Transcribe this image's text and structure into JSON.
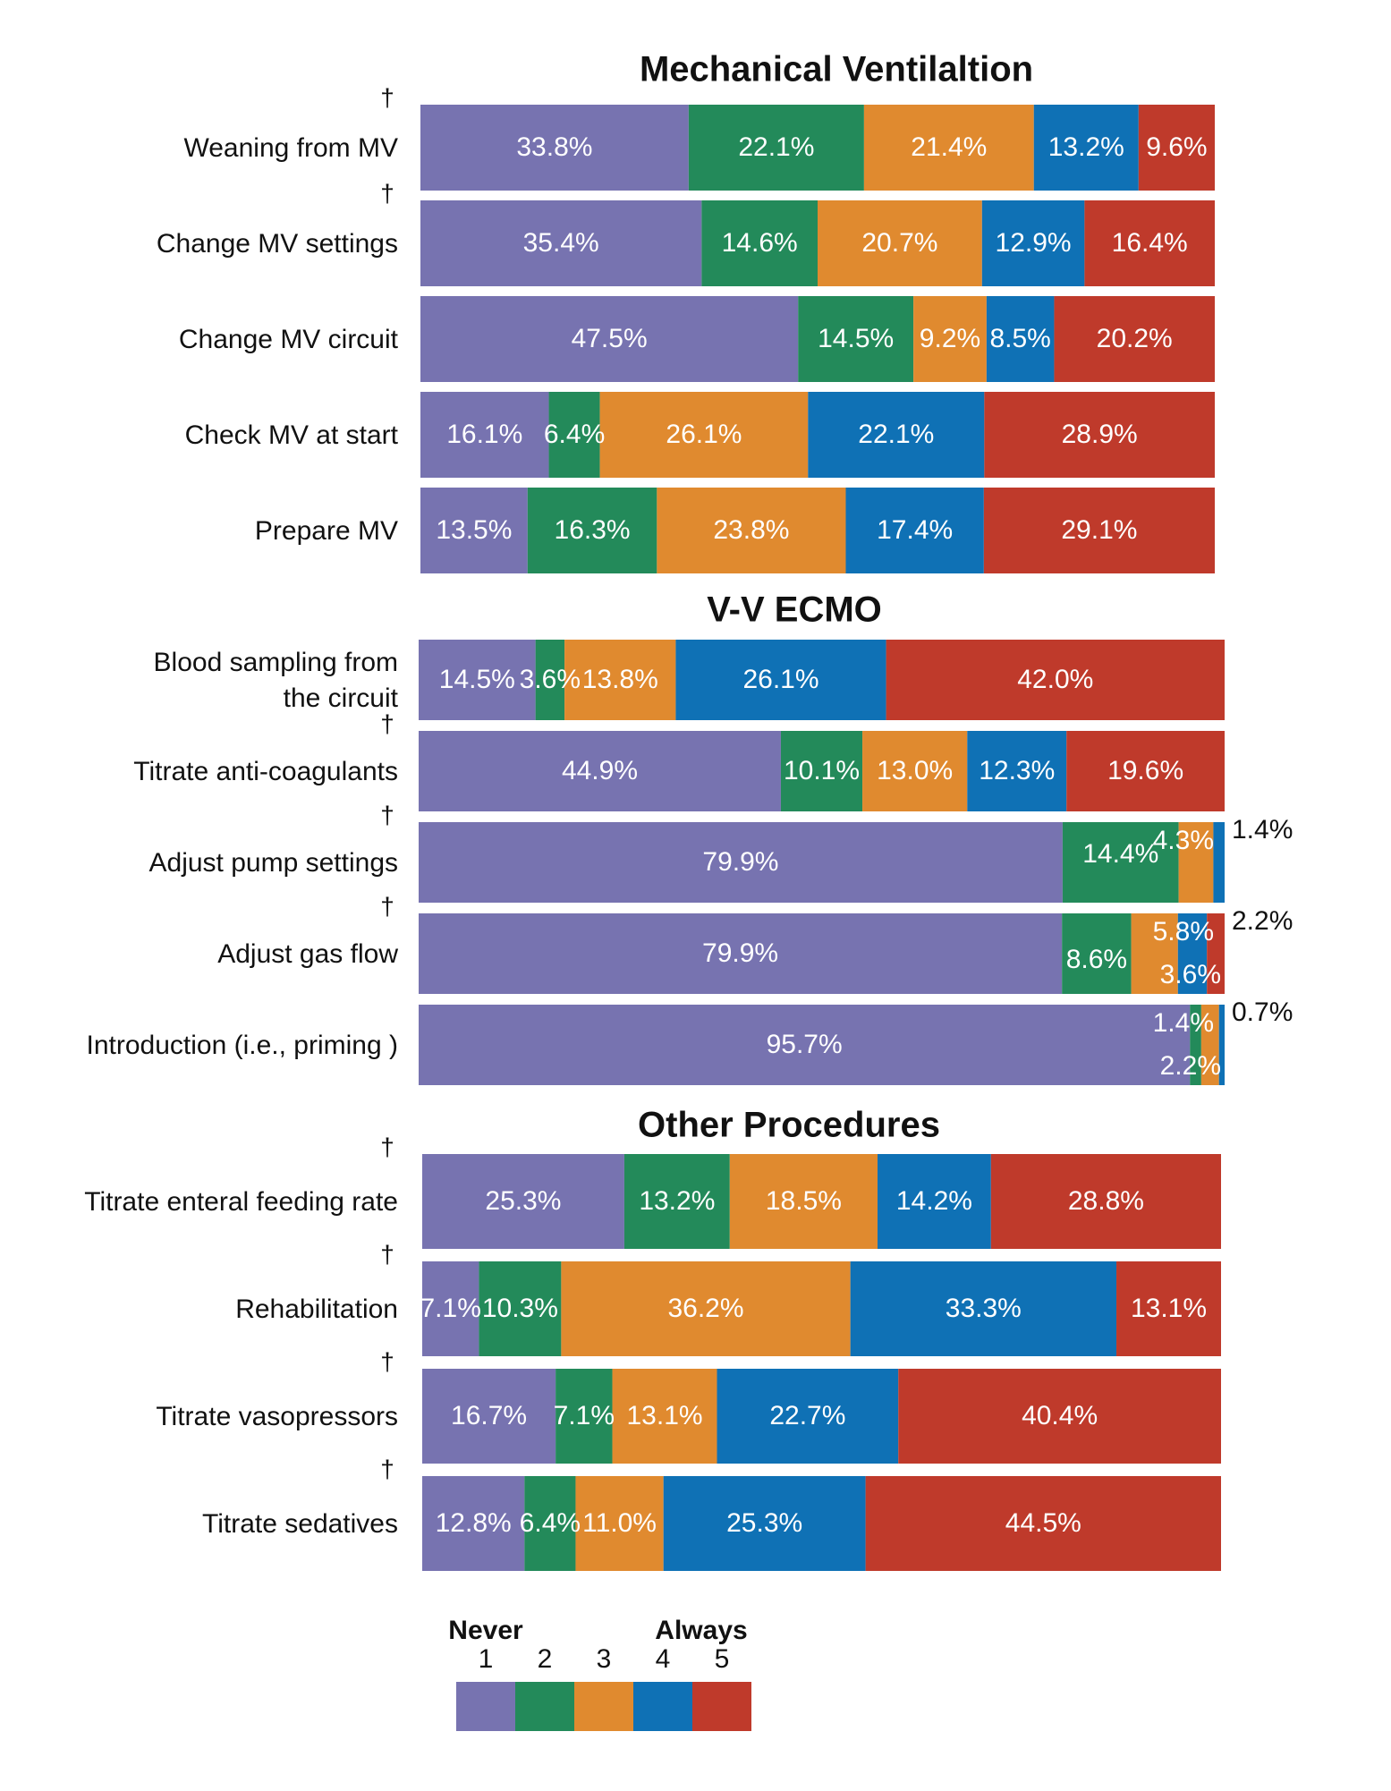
{
  "chart_data": {
    "type": "bar",
    "orientation": "horizontal-stacked-100",
    "categories_legend": [
      "1",
      "2",
      "3",
      "4",
      "5"
    ],
    "colors": [
      "#7773b0",
      "#238a5a",
      "#e08a2f",
      "#0f71b5",
      "#bf3a2b"
    ],
    "legend": {
      "low_label": "Never",
      "high_label": "Always",
      "levels": [
        "1",
        "2",
        "3",
        "4",
        "5"
      ]
    },
    "panels": [
      {
        "title": "Mechanical Ventilaltion",
        "rows": [
          {
            "label": [
              "Weaning from MV"
            ],
            "dagger": true,
            "values": [
              33.8,
              22.1,
              21.4,
              13.2,
              9.6
            ],
            "value_labels": [
              "33.8%",
              "22.1%",
              "21.4%",
              "13.2%",
              "9.6%"
            ]
          },
          {
            "label": [
              "Change MV settings"
            ],
            "dagger": true,
            "values": [
              35.4,
              14.6,
              20.7,
              12.9,
              16.4
            ],
            "value_labels": [
              "35.4%",
              "14.6%",
              "20.7%",
              "12.9%",
              "16.4%"
            ]
          },
          {
            "label": [
              "Change MV circuit"
            ],
            "dagger": false,
            "values": [
              47.5,
              14.5,
              9.2,
              8.5,
              20.2
            ],
            "value_labels": [
              "47.5%",
              "14.5%",
              "9.2%",
              "8.5%",
              "20.2%"
            ]
          },
          {
            "label": [
              "Check MV at start"
            ],
            "dagger": false,
            "values": [
              16.1,
              6.4,
              26.1,
              22.1,
              28.9
            ],
            "value_labels": [
              "16.1%",
              "6.4%",
              "26.1%",
              "22.1%",
              "28.9%"
            ]
          },
          {
            "label": [
              "Prepare MV"
            ],
            "dagger": false,
            "values": [
              13.5,
              16.3,
              23.8,
              17.4,
              29.1
            ],
            "value_labels": [
              "13.5%",
              "16.3%",
              "23.8%",
              "17.4%",
              "29.1%"
            ]
          }
        ]
      },
      {
        "title": "V-V ECMO",
        "rows": [
          {
            "label": [
              "Blood sampling from",
              "the circuit"
            ],
            "dagger": false,
            "values": [
              14.5,
              3.6,
              13.8,
              26.1,
              42.0
            ],
            "value_labels": [
              "14.5%",
              "3.6%",
              "13.8%",
              "26.1%",
              "42.0%"
            ]
          },
          {
            "label": [
              "Titrate anti-coagulants"
            ],
            "dagger": true,
            "values": [
              44.9,
              10.1,
              13.0,
              12.3,
              19.6
            ],
            "value_labels": [
              "44.9%",
              "10.1%",
              "13.0%",
              "12.3%",
              "19.6%"
            ]
          },
          {
            "label": [
              "Adjust pump settings"
            ],
            "dagger": true,
            "values": [
              79.9,
              14.4,
              4.3,
              1.4,
              0.0
            ],
            "value_labels": [
              "79.9%",
              "14.4%",
              "4.3%",
              "1.4%",
              ""
            ]
          },
          {
            "label": [
              "Adjust gas flow"
            ],
            "dagger": true,
            "values": [
              79.9,
              8.6,
              5.8,
              3.6,
              2.2
            ],
            "value_labels": [
              "79.9%",
              "8.6%",
              "5.8%",
              "3.6%",
              "2.2%"
            ]
          },
          {
            "label": [
              "Introduction (i.e., priming )"
            ],
            "dagger": false,
            "values": [
              95.7,
              1.4,
              2.2,
              0.7,
              0.0
            ],
            "value_labels": [
              "95.7%",
              "1.4%",
              "2.2%",
              "0.7%",
              ""
            ]
          }
        ]
      },
      {
        "title": "Other Procedures",
        "rows": [
          {
            "label": [
              "Titrate enteral feeding rate"
            ],
            "dagger": true,
            "values": [
              25.3,
              13.2,
              18.5,
              14.2,
              28.8
            ],
            "value_labels": [
              "25.3%",
              "13.2%",
              "18.5%",
              "14.2%",
              "28.8%"
            ]
          },
          {
            "label": [
              "Rehabilitation"
            ],
            "dagger": true,
            "values": [
              7.1,
              10.3,
              36.2,
              33.3,
              13.1
            ],
            "value_labels": [
              "7.1%",
              "10.3%",
              "36.2%",
              "33.3%",
              "13.1%"
            ]
          },
          {
            "label": [
              "Titrate vasopressors"
            ],
            "dagger": true,
            "values": [
              16.7,
              7.1,
              13.1,
              22.7,
              40.4
            ],
            "value_labels": [
              "16.7%",
              "7.1%",
              "13.1%",
              "22.7%",
              "40.4%"
            ]
          },
          {
            "label": [
              "Titrate sedatives"
            ],
            "dagger": true,
            "values": [
              12.8,
              6.4,
              11.0,
              25.3,
              44.5
            ],
            "value_labels": [
              "12.8%",
              "6.4%",
              "11.0%",
              "25.3%",
              "44.5%"
            ]
          }
        ]
      }
    ],
    "dagger_symbol": "†"
  }
}
